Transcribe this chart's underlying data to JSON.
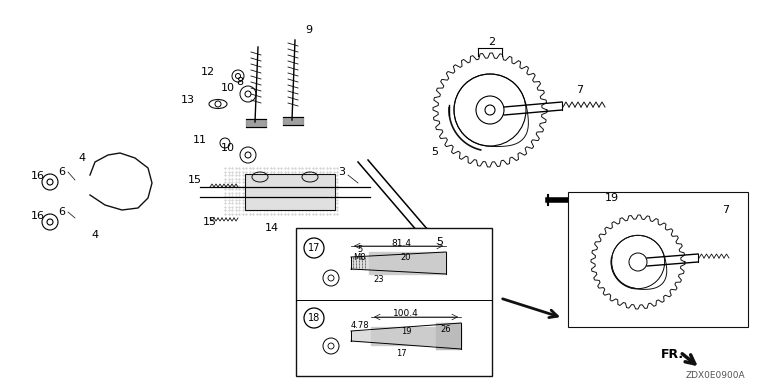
{
  "title": "",
  "bg_color": "#ffffff",
  "diagram_code": "ZDX0E0900A",
  "part_numbers": [
    2,
    3,
    4,
    5,
    6,
    7,
    8,
    9,
    10,
    11,
    12,
    13,
    14,
    15,
    16,
    17,
    18,
    19
  ],
  "dim17": {
    "d": 5,
    "thread": "M8",
    "l1": 20,
    "l2": 23,
    "total": 81.4
  },
  "dim18": {
    "d": 4.78,
    "l1": 19,
    "l2": 17,
    "total": 100.4,
    "d2": 26
  },
  "fr_label": "FR.",
  "figsize": [
    7.68,
    3.84
  ],
  "dpi": 100
}
